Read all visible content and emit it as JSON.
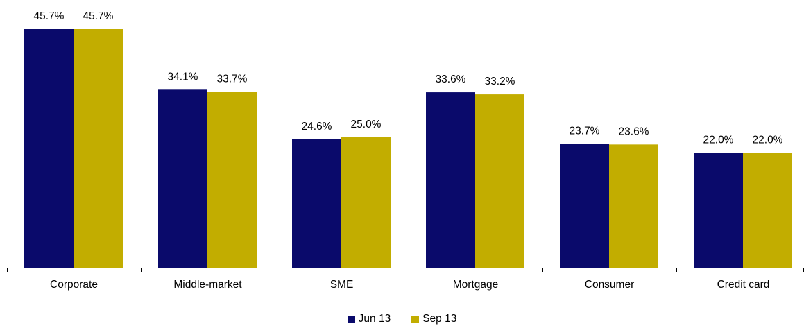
{
  "chart_data": {
    "type": "bar",
    "categories": [
      "Corporate",
      "Middle-market",
      "SME",
      "Mortgage",
      "Consumer",
      "Credit card"
    ],
    "series": [
      {
        "name": "Jun 13",
        "color": "#0a0a6b",
        "values": [
          45.7,
          34.1,
          24.6,
          33.6,
          23.7,
          22.0
        ],
        "labels": [
          "45.7%",
          "34.1%",
          "24.6%",
          "33.6%",
          "23.7%",
          "22.0%"
        ]
      },
      {
        "name": "Sep 13",
        "color": "#c2ad00",
        "values": [
          45.7,
          33.7,
          25.0,
          33.2,
          23.6,
          22.0
        ],
        "labels": [
          "45.7%",
          "33.7%",
          "25.0%",
          "33.2%",
          "23.6%",
          "22.0%"
        ]
      }
    ],
    "ylim": [
      0,
      46
    ],
    "grid": false,
    "legend_position": "bottom-center"
  }
}
